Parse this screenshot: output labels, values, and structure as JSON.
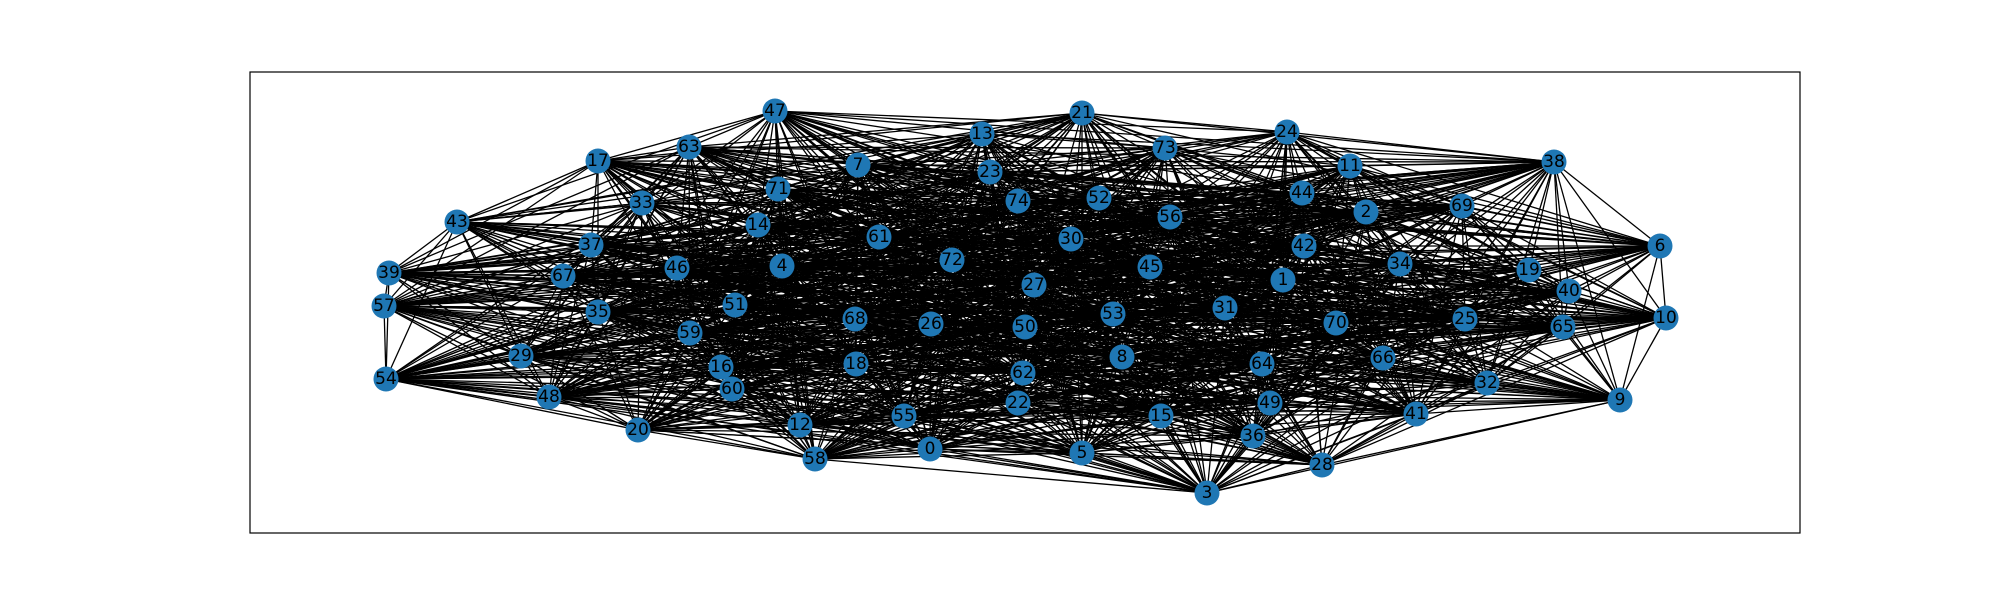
{
  "graph": {
    "node_color": "#1f77b4",
    "edge_color": "#000000",
    "label_color": "#000000",
    "nodes": [
      {
        "id": "0"
      },
      {
        "id": "1"
      },
      {
        "id": "2"
      },
      {
        "id": "3"
      },
      {
        "id": "4"
      },
      {
        "id": "5"
      },
      {
        "id": "6"
      },
      {
        "id": "7"
      },
      {
        "id": "8"
      },
      {
        "id": "9"
      },
      {
        "id": "10"
      },
      {
        "id": "11"
      },
      {
        "id": "12"
      },
      {
        "id": "13"
      },
      {
        "id": "14"
      },
      {
        "id": "15"
      },
      {
        "id": "16"
      },
      {
        "id": "17"
      },
      {
        "id": "18"
      },
      {
        "id": "19"
      },
      {
        "id": "20"
      },
      {
        "id": "21"
      },
      {
        "id": "22"
      },
      {
        "id": "23"
      },
      {
        "id": "24"
      },
      {
        "id": "25"
      },
      {
        "id": "26"
      },
      {
        "id": "27"
      },
      {
        "id": "28"
      },
      {
        "id": "29"
      },
      {
        "id": "30"
      },
      {
        "id": "31"
      },
      {
        "id": "32"
      },
      {
        "id": "33"
      },
      {
        "id": "34"
      },
      {
        "id": "35"
      },
      {
        "id": "36"
      },
      {
        "id": "37"
      },
      {
        "id": "38"
      },
      {
        "id": "39"
      },
      {
        "id": "40"
      },
      {
        "id": "41"
      },
      {
        "id": "42"
      },
      {
        "id": "43"
      },
      {
        "id": "44"
      },
      {
        "id": "45"
      },
      {
        "id": "46"
      },
      {
        "id": "47"
      },
      {
        "id": "48"
      },
      {
        "id": "49"
      },
      {
        "id": "50"
      },
      {
        "id": "51"
      },
      {
        "id": "52"
      },
      {
        "id": "53"
      },
      {
        "id": "54"
      },
      {
        "id": "55"
      },
      {
        "id": "56"
      },
      {
        "id": "57"
      },
      {
        "id": "58"
      },
      {
        "id": "59"
      },
      {
        "id": "60"
      },
      {
        "id": "61"
      },
      {
        "id": "62"
      },
      {
        "id": "63"
      },
      {
        "id": "64"
      },
      {
        "id": "65"
      },
      {
        "id": "66"
      },
      {
        "id": "67"
      },
      {
        "id": "68"
      },
      {
        "id": "69"
      },
      {
        "id": "70"
      },
      {
        "id": "71"
      },
      {
        "id": "72"
      },
      {
        "id": "73"
      },
      {
        "id": "74"
      }
    ]
  }
}
